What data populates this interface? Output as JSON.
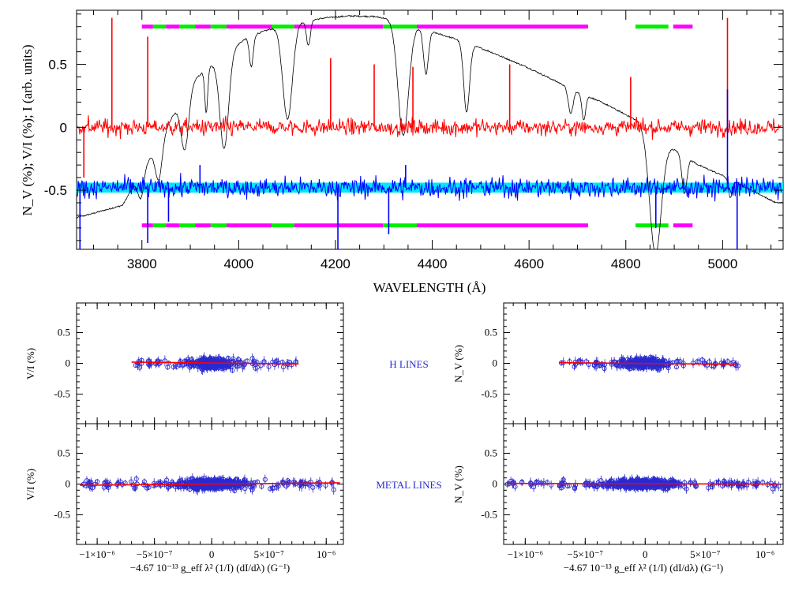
{
  "chart_data": [
    {
      "type": "line",
      "name": "spectrum",
      "xlabel": "WAVELENGTH (Å)",
      "ylabel": "N_V (%); V/I (%); I (arb. units)",
      "xlim": [
        3665,
        5125
      ],
      "ylim": [
        -0.97,
        0.93
      ],
      "xticks": [
        3800,
        4000,
        4200,
        4400,
        4600,
        4800,
        5000
      ],
      "yticks": [
        0.5,
        0,
        -0.5
      ],
      "xtick_labels": [
        "3800",
        "4000",
        "4200",
        "4400",
        "4600",
        "4800",
        "5000"
      ],
      "ytick_labels": [
        "0.5",
        "0",
        "-0.5"
      ],
      "series": [
        {
          "role": "intensity",
          "color": "#000000",
          "continuum": [
            [
              3665,
              -0.72
            ],
            [
              3760,
              -0.62
            ],
            [
              3830,
              -0.15
            ],
            [
              3900,
              0.35
            ],
            [
              3960,
              0.55
            ],
            [
              4020,
              0.72
            ],
            [
              4080,
              0.8
            ],
            [
              4130,
              0.84
            ],
            [
              4180,
              0.87
            ],
            [
              4230,
              0.885
            ],
            [
              4280,
              0.88
            ],
            [
              4330,
              0.85
            ],
            [
              4380,
              0.78
            ],
            [
              4450,
              0.7
            ],
            [
              4520,
              0.6
            ],
            [
              4600,
              0.47
            ],
            [
              4680,
              0.32
            ],
            [
              4760,
              0.18
            ],
            [
              4830,
              0.04
            ],
            [
              4890,
              -0.15
            ],
            [
              4950,
              -0.3
            ],
            [
              5010,
              -0.4
            ],
            [
              5060,
              -0.5
            ],
            [
              5110,
              -0.6
            ]
          ],
          "absorption_lines": [
            [
              3798,
              0.2,
              6
            ],
            [
              3835,
              0.3,
              7
            ],
            [
              3889,
              0.45,
              8
            ],
            [
              3933,
              0.35,
              3
            ],
            [
              3970,
              0.75,
              9
            ],
            [
              4026,
              0.25,
              4
            ],
            [
              4101,
              0.75,
              10
            ],
            [
              4144,
              0.2,
              4
            ],
            [
              4340,
              0.9,
              11
            ],
            [
              4387,
              0.35,
              5
            ],
            [
              4471,
              0.55,
              6
            ],
            [
              4686,
              0.2,
              5
            ],
            [
              4713,
              0.2,
              4
            ],
            [
              4861,
              0.95,
              12
            ],
            [
              4921,
              0.3,
              5
            ],
            [
              5016,
              0.15,
              4
            ]
          ]
        },
        {
          "role": "N_V null",
          "color": "#ff0000",
          "offset": 0.0,
          "noise_sd": 0.045,
          "spikes": [
            [
              3738,
              0.87
            ],
            [
              3812,
              0.72
            ],
            [
              3680,
              -0.4
            ],
            [
              4190,
              0.55
            ],
            [
              4280,
              0.5
            ],
            [
              4360,
              0.48
            ],
            [
              4560,
              0.5
            ],
            [
              4810,
              0.4
            ],
            [
              5010,
              0.87
            ]
          ]
        },
        {
          "role": "V/I",
          "color": "#0000ff",
          "offset": -0.48,
          "noise_sd": 0.055,
          "spikes": [
            [
              3672,
              -0.97
            ],
            [
              3812,
              -0.92
            ],
            [
              3855,
              -0.75
            ],
            [
              3920,
              -0.3
            ],
            [
              4205,
              -0.97
            ],
            [
              4310,
              -0.85
            ],
            [
              4345,
              -0.3
            ],
            [
              4862,
              -0.8
            ],
            [
              5010,
              0.3
            ],
            [
              5030,
              -0.97
            ]
          ]
        },
        {
          "role": "V/I band",
          "color": "#00e8ff",
          "values": [
            -0.48,
            -0.48
          ],
          "x": [
            3665,
            5125
          ],
          "halfwidth": 0.04
        }
      ],
      "masks": {
        "y_levels": [
          0.8,
          -0.78
        ],
        "segments": [
          {
            "x": [
              3800,
              3823
            ],
            "color": "#ff00ff"
          },
          {
            "x": [
              3823,
              3850
            ],
            "color": "#00ee00"
          },
          {
            "x": [
              3850,
              3877
            ],
            "color": "#ff00ff"
          },
          {
            "x": [
              3877,
              3910
            ],
            "color": "#00ee00"
          },
          {
            "x": [
              3910,
              3942
            ],
            "color": "#ff00ff"
          },
          {
            "x": [
              3942,
              3975
            ],
            "color": "#00ee00"
          },
          {
            "x": [
              3975,
              4068
            ],
            "color": "#ff00ff"
          },
          {
            "x": [
              4068,
              4115
            ],
            "color": "#00ee00"
          },
          {
            "x": [
              4115,
              4298
            ],
            "color": "#ff00ff"
          },
          {
            "x": [
              4298,
              4368
            ],
            "color": "#00ee00"
          },
          {
            "x": [
              4368,
              4722
            ],
            "color": "#ff00ff"
          },
          {
            "x": [
              4820,
              4888
            ],
            "color": "#00ee00"
          },
          {
            "x": [
              4898,
              4938
            ],
            "color": "#ff00ff"
          }
        ]
      }
    },
    {
      "type": "scatter",
      "name": "V/I vs slope, H lines",
      "ylabel": "V/I (%)",
      "xlim": [
        -1.18e-06,
        1.15e-06
      ],
      "ylim": [
        -0.98,
        0.98
      ],
      "yticks": [
        0.5,
        0,
        -0.5
      ],
      "ytick_labels": [
        "0.5",
        "0",
        "-0.5"
      ],
      "x_range": [
        -6.8e-07,
        7.8e-07
      ],
      "spread": 0.075,
      "fit": {
        "x": [
          -7e-07,
          7.6e-07
        ],
        "y": [
          0.02,
          -0.01
        ],
        "color": "#ff0000"
      }
    },
    {
      "type": "scatter",
      "name": "N_V vs slope, H lines",
      "ylabel": "N_V (%)",
      "xlim": [
        -1.18e-06,
        1.15e-06
      ],
      "ylim": [
        -0.98,
        0.98
      ],
      "yticks": [
        0.5,
        0,
        -0.5
      ],
      "ytick_labels": [
        "0.5",
        "0",
        "-0.5"
      ],
      "x_range": [
        -7.1e-07,
        7.8e-07
      ],
      "spread": 0.07,
      "fit": {
        "x": [
          -7.2e-07,
          7.6e-07
        ],
        "y": [
          0.01,
          -0.015
        ],
        "color": "#ff0000"
      }
    },
    {
      "type": "scatter",
      "name": "V/I vs slope, metal lines",
      "xlabel": "−4.67 10⁻¹³ g_eff λ² (1/I) (dI/dλ) (G⁻¹)",
      "ylabel": "V/I (%)",
      "xlim": [
        -1.18e-06,
        1.15e-06
      ],
      "ylim": [
        -0.98,
        0.98
      ],
      "yticks": [
        0.5,
        0,
        -0.5
      ],
      "ytick_labels": [
        "0.5",
        "0",
        "-0.5"
      ],
      "xticks": [
        -1e-06,
        -5e-07,
        0,
        5e-07,
        1e-06
      ],
      "xtick_labels": [
        "−1×10⁻⁶",
        "−5×10⁻⁷",
        "0",
        "5×10⁻⁷",
        "10⁻⁶"
      ],
      "x_range": [
        -1.12e-06,
        1.12e-06
      ],
      "spread": 0.07,
      "fit": {
        "x": [
          -1.15e-06,
          1.12e-06
        ],
        "y": [
          -0.02,
          0.02
        ],
        "color": "#ff0000"
      }
    },
    {
      "type": "scatter",
      "name": "N_V vs slope, metal lines",
      "xlabel": "−4.67 10⁻¹³ g_eff λ² (1/I) (dI/dλ) (G⁻¹)",
      "ylabel": "N_V (%)",
      "xlim": [
        -1.18e-06,
        1.15e-06
      ],
      "ylim": [
        -0.98,
        0.98
      ],
      "yticks": [
        0.5,
        0,
        -0.5
      ],
      "ytick_labels": [
        "0.5",
        "0",
        "-0.5"
      ],
      "xticks": [
        -1e-06,
        -5e-07,
        0,
        5e-07,
        1e-06
      ],
      "xtick_labels": [
        "−1×10⁻⁶",
        "−5×10⁻⁷",
        "0",
        "5×10⁻⁷",
        "10⁻⁶"
      ],
      "x_range": [
        -1.15e-06,
        1.12e-06
      ],
      "spread": 0.06,
      "fit": {
        "x": [
          -1.15e-06,
          1.12e-06
        ],
        "y": [
          0.01,
          0.0
        ],
        "color": "#ff0000"
      }
    }
  ],
  "annotations": {
    "h_lines": "H LINES",
    "metal_lines": "METAL LINES"
  },
  "colors": {
    "points": "#2a2ad0",
    "fit": "#ff0000"
  }
}
